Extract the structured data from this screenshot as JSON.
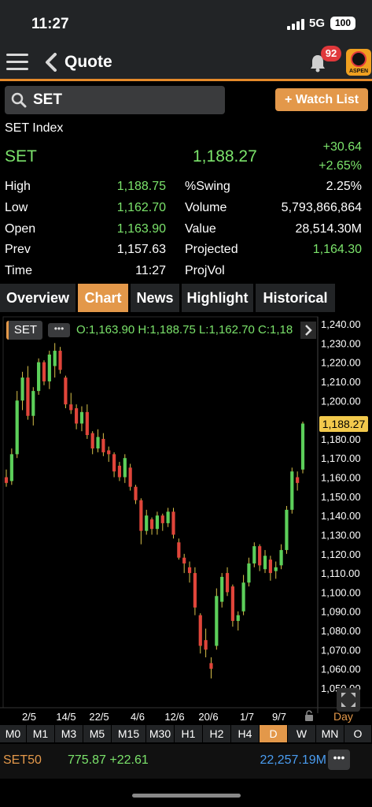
{
  "status": {
    "time": "11:27",
    "network": "5G",
    "battery": "100"
  },
  "nav": {
    "title": "Quote",
    "notifications": "92",
    "logo_text": "ASPEN"
  },
  "search": {
    "value": "SET",
    "watch_list_label": "+ Watch List"
  },
  "quote": {
    "index_name": "SET Index",
    "symbol": "SET",
    "last": "1,188.27",
    "change": "+30.64",
    "change_pct": "+2.65%"
  },
  "stats": [
    {
      "label1": "High",
      "value1": "1,188.75",
      "green1": true,
      "label2": "%Swing",
      "value2": "2.25%",
      "green2": false
    },
    {
      "label1": "Low",
      "value1": "1,162.70",
      "green1": true,
      "label2": "Volume",
      "value2": "5,793,866,864",
      "green2": false
    },
    {
      "label1": "Open",
      "value1": "1,163.90",
      "green1": true,
      "label2": "Value",
      "value2": "28,514.30M",
      "green2": false
    },
    {
      "label1": "Prev",
      "value1": "1,157.63",
      "green1": false,
      "label2": "Projected",
      "value2": "1,164.30",
      "green2": true
    },
    {
      "label1": "Time",
      "value1": "11:27",
      "green1": false,
      "label2": "ProjVol",
      "value2": "",
      "green2": false
    }
  ],
  "tabs": [
    "Overview",
    "Chart",
    "News",
    "Highlight",
    "Historical"
  ],
  "active_tab": "Chart",
  "chart_header": {
    "symbol": "SET",
    "more": "•••",
    "ohlc": "O:1,163.90  H:1,188.75  L:1,162.70  C:1,18"
  },
  "chart_data": {
    "type": "candlestick",
    "x_ticks": [
      "2/5",
      "14/5",
      "22/5",
      "4/6",
      "12/6",
      "20/6",
      "1/7",
      "9/7"
    ],
    "y_ticks": [
      1240,
      1230,
      1220,
      1210,
      1200,
      1190,
      1180,
      1170,
      1160,
      1150,
      1140,
      1130,
      1120,
      1110,
      1100,
      1090,
      1080,
      1070,
      1060,
      1050
    ],
    "y_tick_labels": [
      "1,240.00",
      "1,230.00",
      "1,220.00",
      "1,210.00",
      "1,200.00",
      "1,190.00",
      "1,180.00",
      "1,170.00",
      "1,160.00",
      "1,150.00",
      "1,140.00",
      "1,130.00",
      "1,120.00",
      "1,110.00",
      "1,100.00",
      "1,090.00",
      "1,080.00",
      "1,070.00",
      "1,060.00",
      "1,050.00"
    ],
    "ylim": [
      1048,
      1245
    ],
    "last_price_label": "1,188.27",
    "last_price": 1188.27,
    "period": "Day",
    "up_color": "#5ccf5a",
    "down_color": "#e0453a",
    "candles": [
      [
        1160,
        1164,
        1155,
        1157
      ],
      [
        1158,
        1175,
        1156,
        1172
      ],
      [
        1172,
        1205,
        1170,
        1200
      ],
      [
        1200,
        1215,
        1195,
        1212
      ],
      [
        1212,
        1218,
        1190,
        1192
      ],
      [
        1192,
        1207,
        1187,
        1205
      ],
      [
        1205,
        1222,
        1203,
        1220
      ],
      [
        1220,
        1221,
        1208,
        1210
      ],
      [
        1210,
        1226,
        1206,
        1224
      ],
      [
        1218,
        1230,
        1212,
        1226
      ],
      [
        1226,
        1228,
        1214,
        1216
      ],
      [
        1212,
        1213,
        1196,
        1198
      ],
      [
        1198,
        1204,
        1193,
        1195
      ],
      [
        1196,
        1198,
        1185,
        1188
      ],
      [
        1188,
        1197,
        1184,
        1194
      ],
      [
        1194,
        1198,
        1180,
        1182
      ],
      [
        1183,
        1184,
        1172,
        1175
      ],
      [
        1175,
        1185,
        1173,
        1181
      ],
      [
        1180,
        1183,
        1171,
        1173
      ],
      [
        1174,
        1176,
        1168,
        1172
      ],
      [
        1172,
        1173,
        1160,
        1163
      ],
      [
        1166,
        1168,
        1158,
        1160
      ],
      [
        1160,
        1172,
        1157,
        1170
      ],
      [
        1165,
        1167,
        1153,
        1155
      ],
      [
        1155,
        1156,
        1146,
        1148
      ],
      [
        1148,
        1149,
        1125,
        1132
      ],
      [
        1132,
        1143,
        1130,
        1140
      ],
      [
        1138,
        1139,
        1130,
        1133
      ],
      [
        1133,
        1142,
        1130,
        1140
      ],
      [
        1140,
        1141,
        1132,
        1136
      ],
      [
        1136,
        1144,
        1134,
        1142
      ],
      [
        1142,
        1144,
        1128,
        1130
      ],
      [
        1126,
        1128,
        1117,
        1118
      ],
      [
        1118,
        1120,
        1110,
        1115
      ],
      [
        1113,
        1116,
        1105,
        1110
      ],
      [
        1110,
        1113,
        1088,
        1092
      ],
      [
        1088,
        1089,
        1068,
        1072
      ],
      [
        1075,
        1081,
        1066,
        1070
      ],
      [
        1063,
        1066,
        1055,
        1060
      ],
      [
        1072,
        1102,
        1070,
        1098
      ],
      [
        1095,
        1110,
        1092,
        1108
      ],
      [
        1110,
        1113,
        1098,
        1100
      ],
      [
        1103,
        1104,
        1082,
        1085
      ],
      [
        1085,
        1090,
        1080,
        1088
      ],
      [
        1090,
        1109,
        1088,
        1105
      ],
      [
        1105,
        1118,
        1103,
        1115
      ],
      [
        1115,
        1126,
        1113,
        1124
      ],
      [
        1124,
        1125,
        1111,
        1114
      ],
      [
        1112,
        1122,
        1110,
        1119
      ],
      [
        1117,
        1119,
        1106,
        1110
      ],
      [
        1111,
        1116,
        1107,
        1113
      ],
      [
        1114,
        1125,
        1112,
        1122
      ],
      [
        1122,
        1145,
        1120,
        1143
      ],
      [
        1143,
        1165,
        1141,
        1163
      ],
      [
        1160,
        1163,
        1153,
        1157
      ],
      [
        1164,
        1189,
        1162,
        1188
      ]
    ]
  },
  "timeframes": [
    "M0",
    "M1",
    "M3",
    "M5",
    "M15",
    "M30",
    "H1",
    "H2",
    "H4",
    "D",
    "W",
    "MN",
    "O"
  ],
  "active_timeframe": "D",
  "ticker": {
    "symbol": "SET50",
    "value": "775.87 +22.61",
    "volume": "22,257.19M",
    "more": "•••"
  }
}
